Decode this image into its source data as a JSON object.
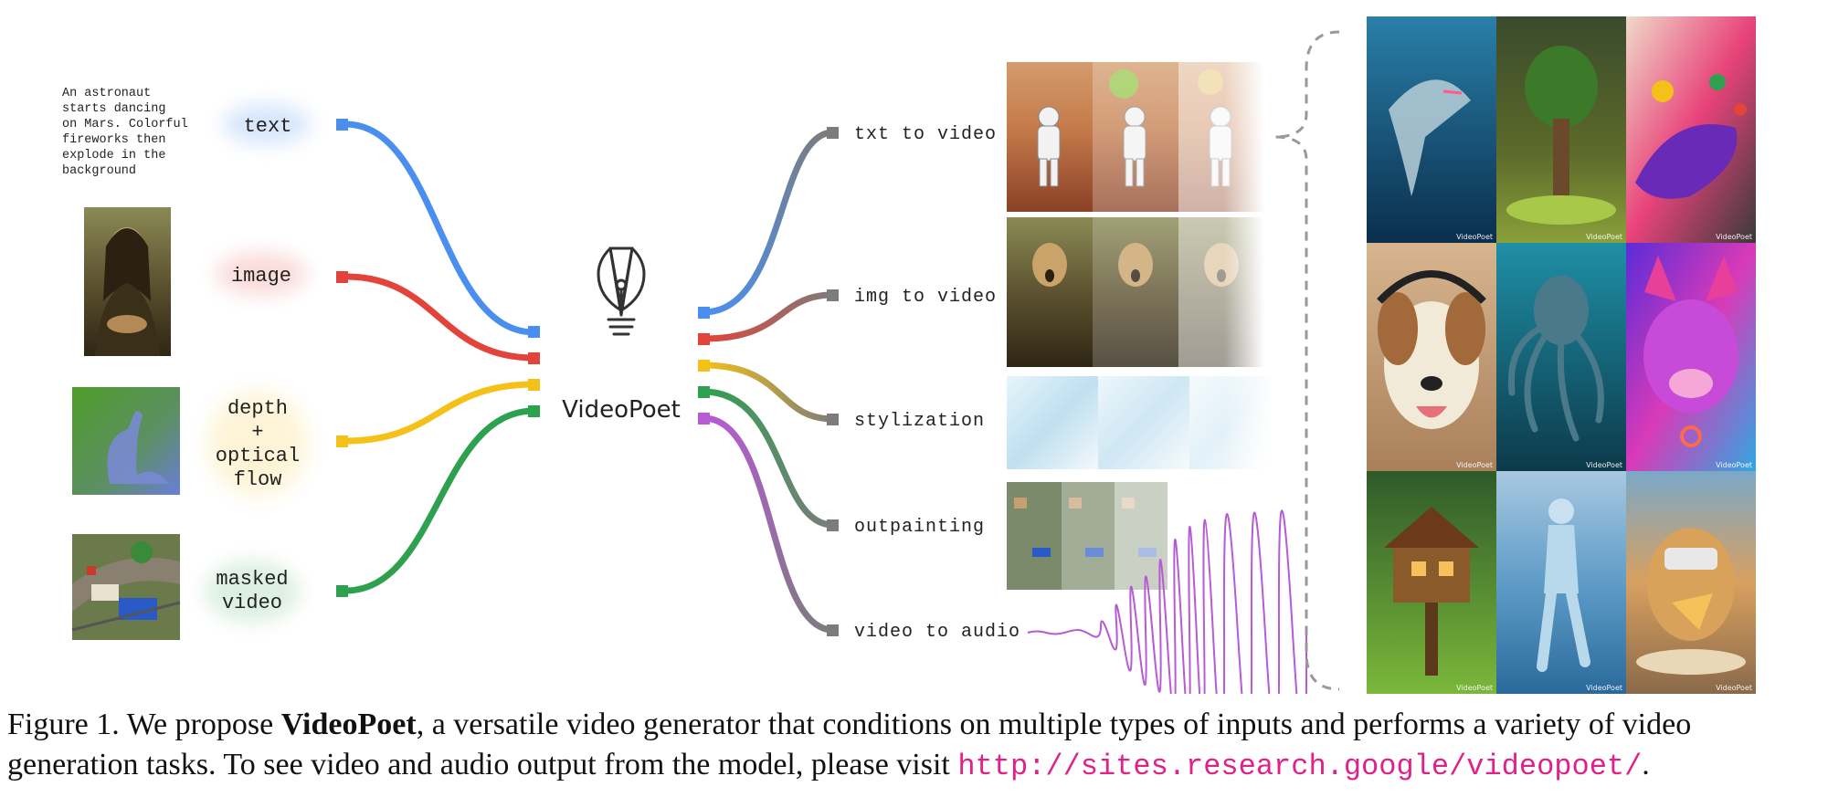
{
  "inputs": {
    "text_prompt": [
      "An astronaut",
      "starts dancing",
      "on Mars. Colorful",
      "fireworks then",
      "explode in the",
      "background"
    ],
    "labels": {
      "text": "text",
      "image": "image",
      "depth_line1": "depth",
      "depth_line2": "+",
      "depth_line3": "optical",
      "depth_line4": "flow",
      "masked_line1": "masked",
      "masked_line2": "video"
    }
  },
  "model": {
    "name": "VideoPoet"
  },
  "tasks": {
    "txt_to_video": "txt to video",
    "img_to_video": "img to video",
    "stylization": "stylization",
    "outpainting": "outpainting",
    "video_to_audio": "video to audio"
  },
  "watermark": "VideoPoet",
  "colors": {
    "blue": "#4a8ff0",
    "red": "#e2433a",
    "yellow": "#f5c118",
    "green": "#2ea14f",
    "purple": "#b65ad6",
    "gray": "#7c7c7c",
    "url": "#e0218a"
  },
  "caption": {
    "prefix": "Figure 1. We propose ",
    "bold": "VideoPoet",
    "middle": ", a versatile video generator that conditions on multiple types of inputs and performs a variety of video generation tasks. To see video and audio output from the model, please visit ",
    "url": "http://sites.research.google/videopoet/",
    "suffix": "."
  }
}
